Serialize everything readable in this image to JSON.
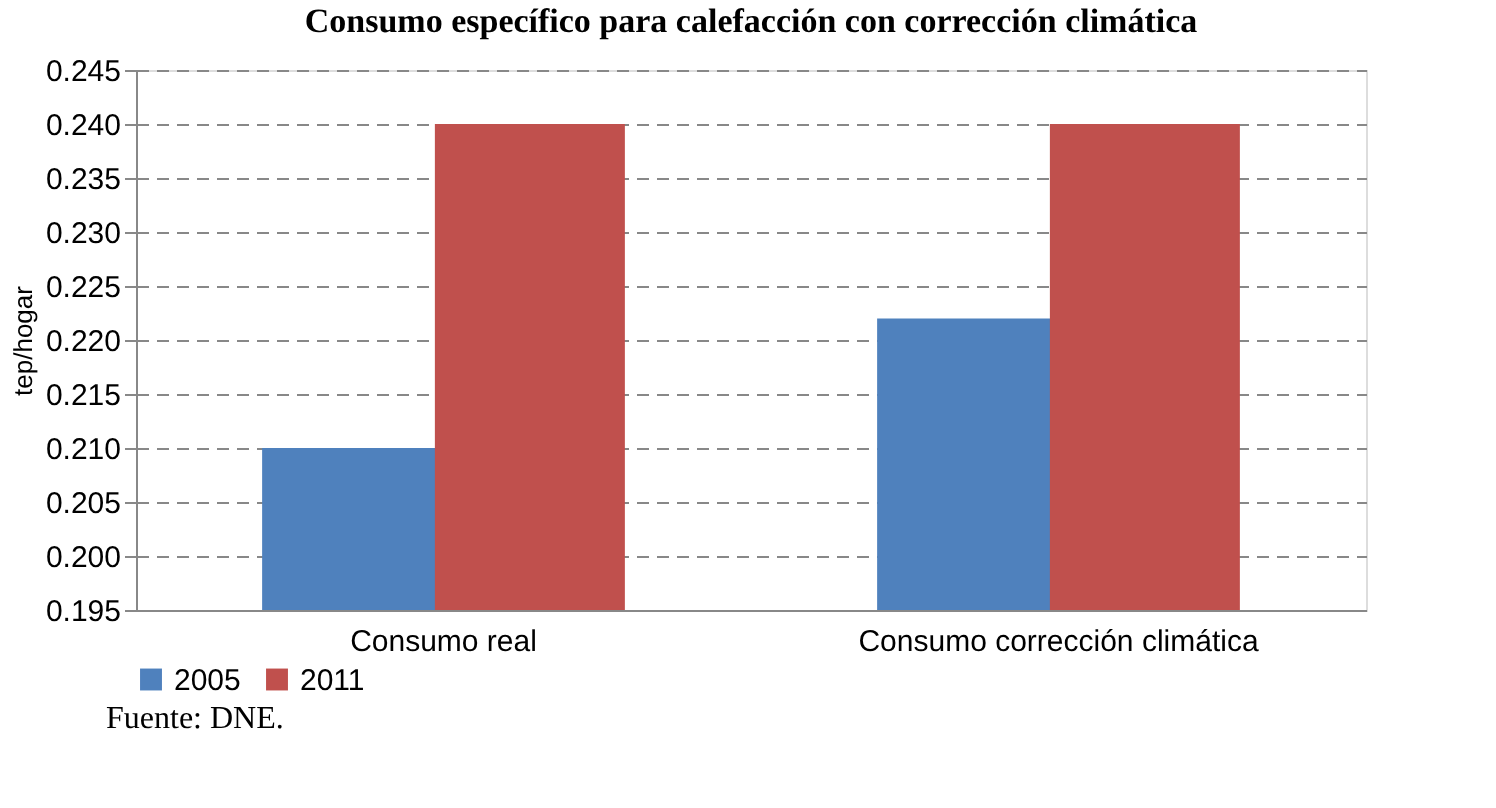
{
  "chart_data": {
    "type": "bar",
    "title": "Consumo específico para calefacción con corrección climática",
    "ylabel": "tep/hogar",
    "categories": [
      "Consumo real",
      "Consumo corrección climática"
    ],
    "series": [
      {
        "name": "2005",
        "color": "#4f81bd",
        "values": [
          0.21,
          0.222
        ]
      },
      {
        "name": "2011",
        "color": "#c0504d",
        "values": [
          0.24,
          0.24
        ]
      }
    ],
    "ylim": [
      0.195,
      0.245
    ],
    "yticks": [
      0.195,
      {
        "value": 0.2,
        "label": "0.200"
      },
      0.205,
      {
        "value": 0.21,
        "label": "0.210"
      },
      0.215,
      {
        "value": 0.22,
        "label": "0.220"
      },
      0.225,
      {
        "value": 0.23,
        "label": "0.230"
      },
      0.235,
      {
        "value": 0.24,
        "label": "0.240"
      },
      0.245
    ],
    "grid": "y",
    "legend": "bottom",
    "annotations": [
      "Fuente: DNE."
    ]
  }
}
